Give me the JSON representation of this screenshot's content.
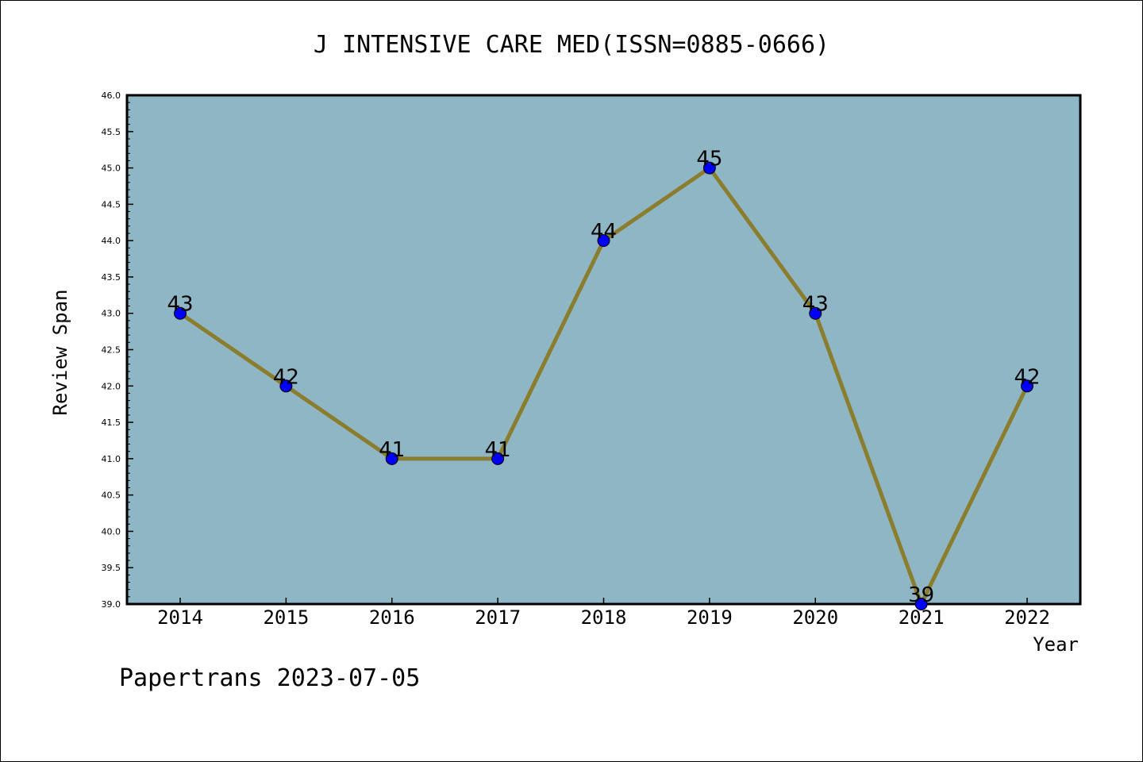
{
  "chart_data": {
    "type": "line",
    "title": "J INTENSIVE CARE MED(ISSN=0885-0666)",
    "xlabel": "Year",
    "ylabel": "Review Span",
    "categories": [
      "2014",
      "2015",
      "2016",
      "2017",
      "2018",
      "2019",
      "2020",
      "2021",
      "2022"
    ],
    "series": [
      {
        "values": [
          43,
          42,
          41,
          41,
          44,
          45,
          43,
          39,
          42
        ]
      }
    ],
    "data_labels": [
      "43",
      "42",
      "41",
      "41",
      "44",
      "45",
      "43",
      "39",
      "42"
    ],
    "ylim": [
      39.0,
      46.0
    ],
    "yticks": [
      "39.0",
      "39.5",
      "40.0",
      "40.5",
      "41.0",
      "41.5",
      "42.0",
      "42.5",
      "43.0",
      "43.5",
      "44.0",
      "44.5",
      "45.0",
      "45.5",
      "46.0"
    ],
    "grid": false,
    "colors": {
      "plot_background": "#8fb6c4",
      "line": "#8b7d2e",
      "marker": "#0000ff"
    }
  },
  "footer": "Papertrans 2023-07-05"
}
